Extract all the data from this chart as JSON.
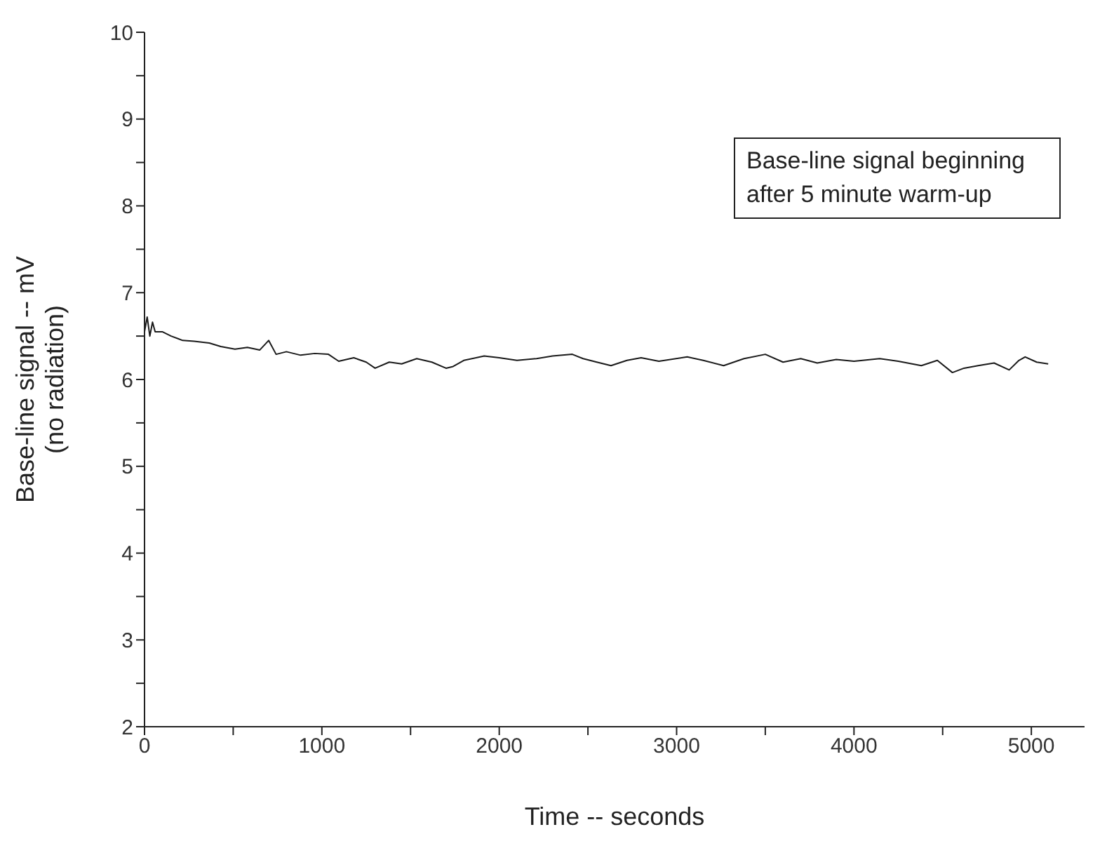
{
  "chart_data": {
    "type": "line",
    "xlabel": "Time -- seconds",
    "ylabel": "Base-line signal -- mV\n(no radiation)",
    "annotations": [
      "Base-line signal beginning after 5 minute warm-up"
    ],
    "xlim": [
      0,
      5300
    ],
    "xticks": [
      0,
      {
        "value": 500,
        "label": null
      },
      1000,
      {
        "value": 1500,
        "label": null
      },
      2000,
      {
        "value": 2500,
        "label": null
      },
      3000,
      {
        "value": 3500,
        "label": null
      },
      4000,
      {
        "value": 4500,
        "label": null
      },
      5000
    ],
    "ylim": [
      2,
      10
    ],
    "yticks": [
      2,
      {
        "value": 2.5,
        "label": null
      },
      3,
      {
        "value": 3.5,
        "label": null
      },
      4,
      {
        "value": 4.5,
        "label": null
      },
      5,
      {
        "value": 5.5,
        "label": null
      },
      6,
      {
        "value": 6.5,
        "label": null
      },
      7,
      {
        "value": 7.5,
        "label": null
      },
      8,
      {
        "value": 8.5,
        "label": null
      },
      9,
      {
        "value": 9.5,
        "label": null
      },
      10
    ],
    "grid": false,
    "marker": "none",
    "line_style": "solid",
    "series": [
      {
        "color": "#1a1a1a",
        "x": [
          0,
          15,
          30,
          45,
          60,
          100,
          150,
          215,
          280,
          365,
          430,
          510,
          580,
          650,
          700,
          742,
          800,
          880,
          960,
          1037,
          1095,
          1180,
          1250,
          1300,
          1380,
          1450,
          1535,
          1620,
          1700,
          1740,
          1800,
          1915,
          2000,
          2100,
          2210,
          2300,
          2412,
          2473,
          2550,
          2630,
          2720,
          2800,
          2900,
          3060,
          3150,
          3265,
          3380,
          3500,
          3600,
          3700,
          3793,
          3900,
          4000,
          4145,
          4250,
          4380,
          4470,
          4555,
          4620,
          4700,
          4790,
          4875,
          4930,
          4965,
          5030,
          5095
        ],
        "values": [
          6.55,
          6.72,
          6.5,
          6.66,
          6.55,
          6.55,
          6.5,
          6.45,
          6.44,
          6.42,
          6.38,
          6.35,
          6.37,
          6.34,
          6.45,
          6.29,
          6.32,
          6.28,
          6.3,
          6.29,
          6.21,
          6.25,
          6.2,
          6.13,
          6.2,
          6.18,
          6.24,
          6.2,
          6.13,
          6.15,
          6.22,
          6.27,
          6.25,
          6.22,
          6.24,
          6.27,
          6.29,
          6.24,
          6.2,
          6.16,
          6.22,
          6.25,
          6.21,
          6.26,
          6.22,
          6.16,
          6.24,
          6.29,
          6.2,
          6.24,
          6.19,
          6.23,
          6.21,
          6.24,
          6.21,
          6.16,
          6.22,
          6.08,
          6.13,
          6.16,
          6.19,
          6.11,
          6.22,
          6.26,
          6.2,
          6.18
        ]
      }
    ]
  }
}
